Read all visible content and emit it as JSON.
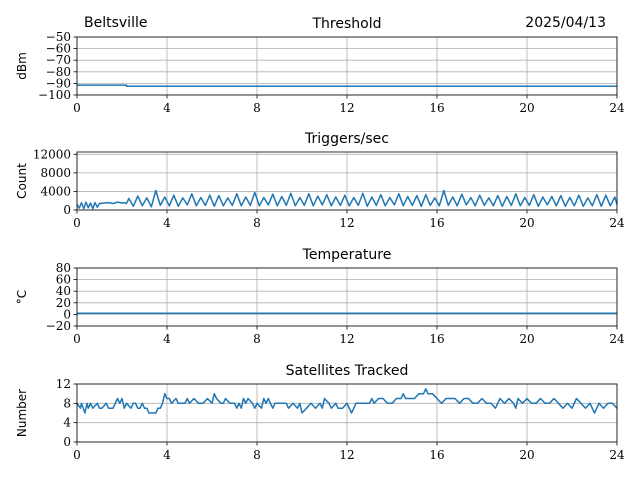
{
  "header": {
    "station": "Beltsville",
    "date": "2025/04/13"
  },
  "colors": {
    "series": "#1f77b4",
    "grid": "#b0b0b0"
  },
  "chart_data": [
    {
      "type": "line",
      "title": "Threshold",
      "ylabel": "dBm",
      "xlim": [
        0,
        24
      ],
      "ylim": [
        -100,
        -50
      ],
      "xticks": [
        "0",
        "4",
        "8",
        "12",
        "16",
        "20",
        "24"
      ],
      "yticks": [
        "−50",
        "−60",
        "−70",
        "−80",
        "−90",
        "−100"
      ],
      "ytick_values": [
        -50,
        -60,
        -70,
        -80,
        -90,
        -100
      ],
      "grid": true,
      "series": [
        {
          "x": [
            0,
            0.3,
            0.8,
            1.5,
            2.2,
            2.2,
            4,
            8,
            12,
            16,
            20,
            24
          ],
          "y": [
            -91.5,
            -91.5,
            -91.5,
            -91.5,
            -91.5,
            -92.5,
            -92.5,
            -92.5,
            -92.5,
            -92.5,
            -92.5,
            -92.5
          ]
        }
      ]
    },
    {
      "type": "line",
      "title": "Triggers/sec",
      "ylabel": "Count",
      "xlim": [
        0,
        24
      ],
      "ylim": [
        0,
        12500
      ],
      "xticks": [
        "0",
        "4",
        "8",
        "12",
        "16",
        "20",
        "24"
      ],
      "yticks": [
        "0",
        "4000",
        "8000",
        "12000"
      ],
      "ytick_values": [
        0,
        4000,
        8000,
        12000
      ],
      "grid": true,
      "series": [
        {
          "x": [
            0,
            0.1,
            0.2,
            0.3,
            0.4,
            0.5,
            0.6,
            0.7,
            0.8,
            0.9,
            1.0,
            1.2,
            1.4,
            1.6,
            1.8,
            2.0,
            2.1,
            2.2,
            2.3,
            2.5,
            2.7,
            2.9,
            3.1,
            3.3,
            3.5,
            3.7,
            3.9,
            4.1,
            4.3,
            4.5,
            4.7,
            4.9,
            5.1,
            5.3,
            5.5,
            5.7,
            5.9,
            6.1,
            6.3,
            6.5,
            6.7,
            6.9,
            7.1,
            7.3,
            7.5,
            7.7,
            7.9,
            8.1,
            8.3,
            8.5,
            8.7,
            8.9,
            9.1,
            9.3,
            9.5,
            9.7,
            9.9,
            10.1,
            10.3,
            10.5,
            10.7,
            10.9,
            11.1,
            11.3,
            11.5,
            11.7,
            11.9,
            12.1,
            12.3,
            12.5,
            12.7,
            12.9,
            13.1,
            13.3,
            13.5,
            13.7,
            13.9,
            14.1,
            14.3,
            14.5,
            14.7,
            14.9,
            15.1,
            15.3,
            15.5,
            15.7,
            15.9,
            16.1,
            16.3,
            16.5,
            16.7,
            16.9,
            17.1,
            17.3,
            17.5,
            17.7,
            17.9,
            18.1,
            18.3,
            18.5,
            18.7,
            18.9,
            19.1,
            19.3,
            19.5,
            19.7,
            19.9,
            20.1,
            20.3,
            20.5,
            20.7,
            20.9,
            21.1,
            21.3,
            21.5,
            21.7,
            21.9,
            22.1,
            22.3,
            22.5,
            22.7,
            22.9,
            23.1,
            23.3,
            23.5,
            23.7,
            23.9,
            24.0
          ],
          "y": [
            1200,
            400,
            1600,
            300,
            1700,
            500,
            1500,
            300,
            1600,
            600,
            1400,
            1500,
            1600,
            1400,
            1700,
            1500,
            1600,
            1400,
            2500,
            800,
            3000,
            900,
            2600,
            700,
            4200,
            1000,
            2800,
            900,
            3200,
            800,
            2600,
            1100,
            3500,
            900,
            2700,
            1000,
            3200,
            800,
            3100,
            900,
            2600,
            1000,
            3500,
            900,
            2800,
            1000,
            3800,
            900,
            2700,
            1100,
            3400,
            900,
            2900,
            1000,
            3600,
            900,
            2700,
            1000,
            3500,
            900,
            3000,
            1100,
            3300,
            900,
            2800,
            1000,
            3200,
            900,
            2700,
            1000,
            3600,
            800,
            2800,
            1000,
            3300,
            900,
            2700,
            1100,
            3500,
            900,
            2900,
            1000,
            3100,
            800,
            3300,
            1000,
            2600,
            900,
            4200,
            1000,
            2800,
            900,
            3400,
            1100,
            2700,
            900,
            3200,
            1000,
            2600,
            900,
            3100,
            800,
            2900,
            1000,
            3500,
            900,
            2700,
            1000,
            3300,
            800,
            2800,
            1100,
            2900,
            900,
            3100,
            800,
            2700,
            900,
            3200,
            800,
            2600,
            900,
            3300,
            800,
            3200,
            900,
            2800,
            1200
          ]
        }
      ]
    },
    {
      "type": "line",
      "title": "Temperature",
      "ylabel": "°C",
      "xlim": [
        0,
        24
      ],
      "ylim": [
        -20,
        80
      ],
      "xticks": [
        "0",
        "4",
        "8",
        "12",
        "16",
        "20",
        "24"
      ],
      "yticks": [
        "80",
        "60",
        "40",
        "20",
        "0",
        "−20"
      ],
      "ytick_values": [
        80,
        60,
        40,
        20,
        0,
        -20
      ],
      "grid": true,
      "series": [
        {
          "x": [
            0,
            24
          ],
          "y": [
            2,
            2
          ]
        }
      ]
    },
    {
      "type": "line",
      "title": "Satellites Tracked",
      "ylabel": "Number",
      "xlim": [
        0,
        24
      ],
      "ylim": [
        0,
        12
      ],
      "xticks": [
        "0",
        "4",
        "8",
        "12",
        "16",
        "20",
        "24"
      ],
      "yticks": [
        "0",
        "4",
        "8",
        "12"
      ],
      "ytick_values": [
        0,
        4,
        8,
        12
      ],
      "grid": true,
      "series": [
        {
          "x": [
            0,
            0.15,
            0.2,
            0.35,
            0.45,
            0.5,
            0.6,
            0.7,
            0.9,
            1.0,
            1.1,
            1.3,
            1.4,
            1.6,
            1.8,
            1.9,
            2.0,
            2.1,
            2.2,
            2.4,
            2.5,
            2.6,
            2.7,
            2.8,
            2.9,
            3.0,
            3.1,
            3.2,
            3.4,
            3.5,
            3.6,
            3.7,
            3.8,
            3.9,
            4.0,
            4.1,
            4.2,
            4.4,
            4.5,
            4.8,
            4.9,
            5.0,
            5.2,
            5.4,
            5.6,
            5.8,
            6.0,
            6.1,
            6.2,
            6.4,
            6.5,
            6.6,
            6.8,
            7.0,
            7.1,
            7.2,
            7.3,
            7.4,
            7.5,
            7.6,
            7.8,
            7.9,
            8.0,
            8.2,
            8.3,
            8.4,
            8.5,
            8.6,
            8.7,
            8.8,
            9.0,
            9.3,
            9.4,
            9.6,
            9.8,
            9.9,
            10.0,
            10.2,
            10.4,
            10.6,
            10.8,
            10.9,
            11.0,
            11.2,
            11.3,
            11.5,
            11.6,
            11.8,
            12.0,
            12.2,
            12.3,
            12.4,
            12.6,
            12.8,
            13.0,
            13.1,
            13.2,
            13.4,
            13.6,
            13.8,
            14.0,
            14.2,
            14.4,
            14.5,
            14.6,
            14.8,
            15.0,
            15.2,
            15.4,
            15.5,
            15.6,
            15.8,
            16.0,
            16.2,
            16.4,
            16.6,
            16.8,
            17.0,
            17.2,
            17.4,
            17.6,
            17.8,
            18.0,
            18.2,
            18.4,
            18.6,
            18.8,
            19.0,
            19.2,
            19.4,
            19.5,
            19.6,
            19.8,
            20.0,
            20.2,
            20.4,
            20.6,
            20.8,
            21.0,
            21.2,
            21.4,
            21.6,
            21.8,
            22.0,
            22.2,
            22.4,
            22.6,
            22.8,
            23.0,
            23.2,
            23.4,
            23.6,
            23.8,
            24.0
          ],
          "y": [
            8,
            7,
            8,
            6,
            8,
            7,
            8,
            7,
            8,
            7,
            7,
            8,
            7,
            7,
            9,
            8,
            9,
            7,
            8,
            7,
            8,
            8,
            7,
            7,
            8,
            7,
            7,
            6,
            6,
            6,
            7,
            7,
            8,
            10,
            9,
            9,
            8,
            9,
            8,
            8,
            9,
            8,
            9,
            8,
            8,
            9,
            8,
            10,
            9,
            8,
            8,
            9,
            8,
            8,
            7,
            8,
            7,
            9,
            8,
            9,
            8,
            7,
            8,
            7,
            9,
            8,
            9,
            8,
            7,
            8,
            8,
            8,
            7,
            8,
            7,
            8,
            6,
            7,
            8,
            7,
            8,
            7,
            9,
            8,
            7,
            8,
            7,
            7,
            8,
            6,
            7,
            8,
            8,
            8,
            8,
            9,
            8,
            9,
            9,
            8,
            8,
            9,
            9,
            10,
            9,
            9,
            9,
            10,
            10,
            11,
            10,
            10,
            9,
            8,
            9,
            9,
            9,
            8,
            9,
            9,
            8,
            8,
            9,
            8,
            8,
            7,
            9,
            8,
            9,
            8,
            7,
            9,
            8,
            9,
            8,
            8,
            9,
            8,
            8,
            9,
            8,
            7,
            8,
            7,
            9,
            8,
            7,
            8,
            6,
            8,
            7,
            8,
            8,
            7
          ]
        }
      ]
    }
  ]
}
